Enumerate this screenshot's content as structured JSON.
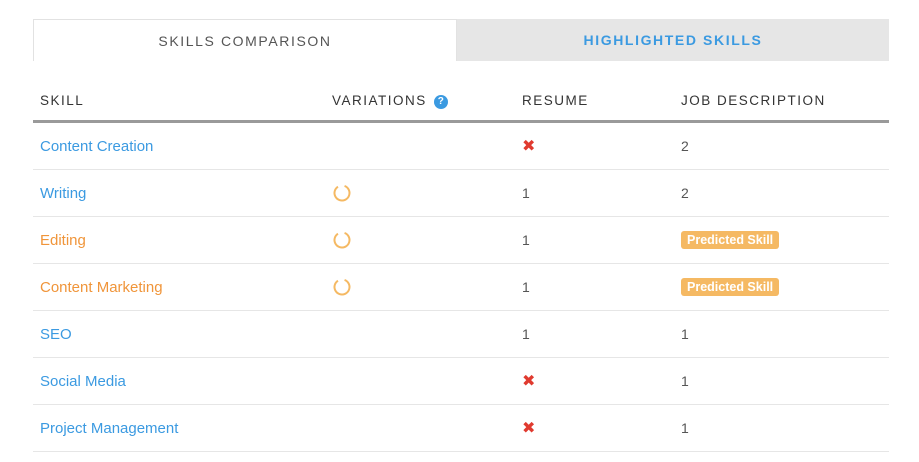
{
  "tabs": [
    {
      "label": "SKILLS COMPARISON"
    },
    {
      "label": "HIGHLIGHTED SKILLS"
    }
  ],
  "columns": {
    "skill": "SKILL",
    "variations": "VARIATIONS",
    "resume": "RESUME",
    "job_description": "JOB DESCRIPTION"
  },
  "help_icon_glyph": "?",
  "colors": {
    "link_blue": "#3b9ae1",
    "predicted_orange": "#f0953a",
    "badge_bg": "#f5b963",
    "missing_red": "#e03a2f"
  },
  "rows": [
    {
      "skill": "Content Creation",
      "color": "blue",
      "variation_icon": "",
      "resume": "missing",
      "job": "2"
    },
    {
      "skill": "Writing",
      "color": "blue",
      "variation_icon": "ring-icon",
      "resume": "1",
      "job": "2"
    },
    {
      "skill": "Editing",
      "color": "orange",
      "variation_icon": "ring-icon",
      "resume": "1",
      "job": "Predicted Skill"
    },
    {
      "skill": "Content Marketing",
      "color": "orange",
      "variation_icon": "ring-icon",
      "resume": "1",
      "job": "Predicted Skill"
    },
    {
      "skill": "SEO",
      "color": "blue",
      "variation_icon": "",
      "resume": "1",
      "job": "1"
    },
    {
      "skill": "Social Media",
      "color": "blue",
      "variation_icon": "",
      "resume": "missing",
      "job": "1"
    },
    {
      "skill": "Project Management",
      "color": "blue",
      "variation_icon": "",
      "resume": "missing",
      "job": "1"
    }
  ],
  "missing_glyph": "✖"
}
